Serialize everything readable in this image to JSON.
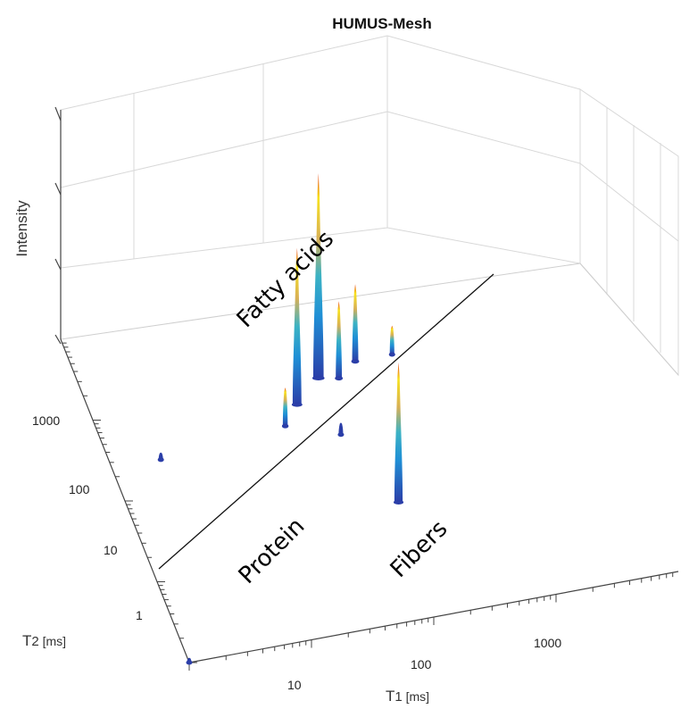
{
  "chart_data": {
    "type": "surface3d",
    "title": "HUMUS-Mesh",
    "zlabel": "Intensity",
    "xaxis": {
      "label_main": "T",
      "label_sub": "1",
      "label_unit": " [ms]",
      "scale": "log",
      "ticks": [
        "10",
        "100",
        "1000"
      ]
    },
    "yaxis": {
      "label_main": "T",
      "label_sub": "2",
      "label_unit": " [ms]",
      "scale": "log",
      "ticks": [
        "1",
        "10",
        "100",
        "1000"
      ]
    },
    "grid": true,
    "colormap": [
      "#2b3ea8",
      "#1f8fd6",
      "#3cc0b8",
      "#f6b93b",
      "#f7e21e",
      "#e8441f"
    ],
    "peaks": [
      {
        "t1": 40,
        "t2": 550,
        "height": 0.65
      },
      {
        "t1": 70,
        "t2": 1000,
        "height": 0.85
      },
      {
        "t1": 100,
        "t2": 900,
        "height": 0.32
      },
      {
        "t1": 150,
        "t2": 1300,
        "height": 0.32
      },
      {
        "t1": 28,
        "t2": 330,
        "height": 0.16
      },
      {
        "t1": 70,
        "t2": 200,
        "height": 0.05
      },
      {
        "t1": 120,
        "t2": 25,
        "height": 0.58
      },
      {
        "t1": 300,
        "t2": 1300,
        "height": 0.12
      },
      {
        "t1": 2.5,
        "t2": 250,
        "height": 0.03
      },
      {
        "t1": 1,
        "t2": 1,
        "height": 0.02
      }
    ],
    "annotations": [
      {
        "text": "Fatty acids"
      },
      {
        "text": "Protein"
      },
      {
        "text": "Fibers"
      }
    ]
  }
}
